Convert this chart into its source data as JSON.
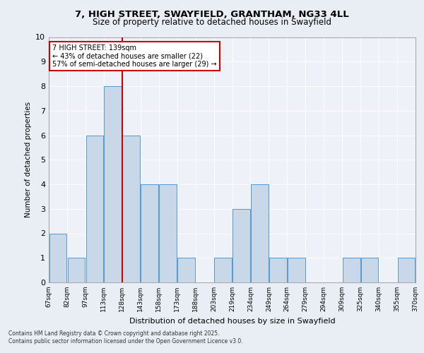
{
  "title_line1": "7, HIGH STREET, SWAYFIELD, GRANTHAM, NG33 4LL",
  "title_line2": "Size of property relative to detached houses in Swayfield",
  "xlabel": "Distribution of detached houses by size in Swayfield",
  "ylabel": "Number of detached properties",
  "bin_labels": [
    "67sqm",
    "82sqm",
    "97sqm",
    "113sqm",
    "128sqm",
    "143sqm",
    "158sqm",
    "173sqm",
    "188sqm",
    "203sqm",
    "219sqm",
    "234sqm",
    "249sqm",
    "264sqm",
    "279sqm",
    "294sqm",
    "309sqm",
    "325sqm",
    "340sqm",
    "355sqm",
    "370sqm"
  ],
  "values": [
    2,
    1,
    6,
    8,
    6,
    4,
    4,
    1,
    0,
    1,
    3,
    4,
    1,
    1,
    0,
    0,
    1,
    1,
    0,
    1
  ],
  "bar_color": "#c8d8e8",
  "bar_edgecolor": "#5599cc",
  "reference_line_bin_index": 4,
  "reference_line_color": "#cc0000",
  "annotation_text": "7 HIGH STREET: 139sqm\n← 43% of detached houses are smaller (22)\n57% of semi-detached houses are larger (29) →",
  "annotation_box_edgecolor": "#cc0000",
  "ylim": [
    0,
    10
  ],
  "yticks": [
    0,
    1,
    2,
    3,
    4,
    5,
    6,
    7,
    8,
    9,
    10
  ],
  "footer": "Contains HM Land Registry data © Crown copyright and database right 2025.\nContains public sector information licensed under the Open Government Licence v3.0.",
  "background_color": "#e8eef4",
  "plot_background_color": "#eef2f8",
  "grid_color": "#ffffff"
}
